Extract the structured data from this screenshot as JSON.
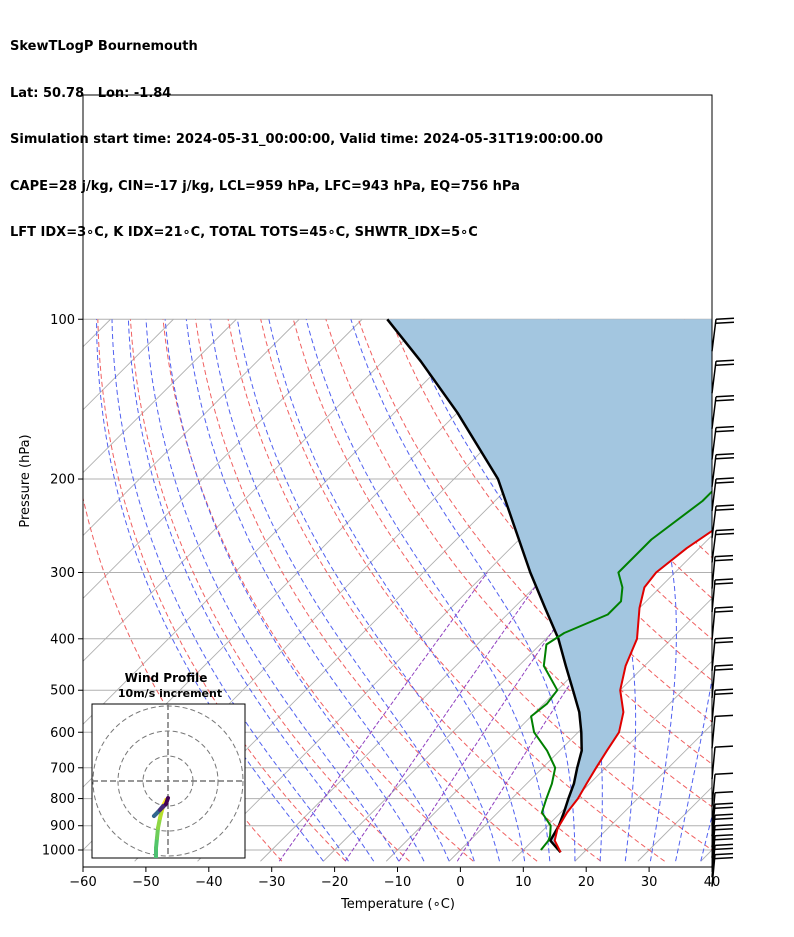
{
  "header": {
    "lines": [
      "SkewTLogP Bournemouth",
      "Lat: 50.78   Lon: -1.84",
      "Simulation start time: 2024-05-31_00:00:00, Valid time: 2024-05-31T19:00:00.00",
      "CAPE=28 j/kg, CIN=-17 j/kg, LCL=959 hPa, LFC=943 hPa, EQ=756 hPa",
      "LFT IDX=3∘C, K IDX=21∘C, TOTAL TOTS=45∘C, SHWTR_IDX=5∘C"
    ]
  },
  "chart_data": {
    "type": "line",
    "subtype": "skew-t-log-p",
    "xlabel": "Temperature (∘C)",
    "ylabel": "Pressure (hPa)",
    "xlim": [
      -60,
      40
    ],
    "ylim": [
      1050,
      100
    ],
    "y_scale": "log",
    "x_ticks": [
      -60,
      -50,
      -40,
      -30,
      -20,
      -10,
      0,
      10,
      20,
      30,
      40
    ],
    "y_ticks": [
      1000,
      900,
      800,
      700,
      600,
      500,
      400,
      300,
      200,
      100
    ],
    "grid": true,
    "colors": {
      "temperature": "#e00000",
      "dewpoint": "#008000",
      "parcel": "#000000",
      "cape_fill": "#a3c6e0",
      "dry_adiabats": "#f06060",
      "moist_adiabats": "#5060f0",
      "mixing_ratio": "#9040c0",
      "isotherms": "#b0b0b0"
    },
    "series": [
      {
        "key": "temperature",
        "points": [
          [
            16.3,
            1010
          ],
          [
            13.5,
            960
          ],
          [
            12,
            910
          ],
          [
            11,
            850
          ],
          [
            10.5,
            800
          ],
          [
            9.5,
            750
          ],
          [
            8.5,
            700
          ],
          [
            7.5,
            650
          ],
          [
            6.5,
            600
          ],
          [
            4,
            550
          ],
          [
            0,
            500
          ],
          [
            -3,
            450
          ],
          [
            -5.5,
            400
          ],
          [
            -10,
            350
          ],
          [
            -12.5,
            320
          ],
          [
            -13,
            300
          ],
          [
            -12,
            270
          ],
          [
            -10,
            240
          ],
          [
            -6,
            210
          ],
          [
            -3,
            190
          ],
          [
            0,
            170
          ],
          [
            5,
            150
          ],
          [
            12,
            130
          ],
          [
            14,
            120
          ],
          [
            17,
            110
          ],
          [
            18,
            100
          ]
        ]
      },
      {
        "key": "dewpoint",
        "points": [
          [
            12.8,
            1000
          ],
          [
            12.5,
            960
          ],
          [
            12,
            940
          ],
          [
            10.5,
            900
          ],
          [
            7,
            850
          ],
          [
            5.5,
            800
          ],
          [
            4,
            750
          ],
          [
            2,
            700
          ],
          [
            -2,
            650
          ],
          [
            -7,
            600
          ],
          [
            -10,
            560
          ],
          [
            -9.5,
            530
          ],
          [
            -10,
            500
          ],
          [
            -16,
            450
          ],
          [
            -19,
            410
          ],
          [
            -18,
            390
          ],
          [
            -14,
            360
          ],
          [
            -14,
            340
          ],
          [
            -16,
            320
          ],
          [
            -19,
            300
          ],
          [
            -19,
            260
          ],
          [
            -17,
            220
          ],
          [
            -17,
            210
          ],
          [
            -17,
            200
          ],
          [
            -19,
            190
          ],
          [
            -22,
            180
          ],
          [
            -23,
            170
          ],
          [
            -21,
            160
          ],
          [
            -17,
            140
          ],
          [
            -11,
            120
          ],
          [
            -5,
            105
          ],
          [
            -3,
            100
          ]
        ]
      },
      {
        "key": "parcel",
        "points": [
          [
            16.3,
            1010
          ],
          [
            12.8,
            960
          ],
          [
            11.8,
            900
          ],
          [
            10.5,
            850
          ],
          [
            9,
            800
          ],
          [
            7.5,
            750
          ],
          [
            5.5,
            700
          ],
          [
            3.5,
            650
          ],
          [
            0.5,
            600
          ],
          [
            -3,
            550
          ],
          [
            -7.5,
            500
          ],
          [
            -12.5,
            450
          ],
          [
            -18,
            400
          ],
          [
            -25,
            350
          ],
          [
            -33,
            300
          ],
          [
            -42,
            250
          ],
          [
            -53,
            200
          ],
          [
            -70,
            150
          ],
          [
            -84,
            120
          ],
          [
            -96,
            100
          ]
        ]
      }
    ],
    "wind_profile": {
      "title": "Wind Profile",
      "subtitle": "10m/s increment"
    }
  }
}
